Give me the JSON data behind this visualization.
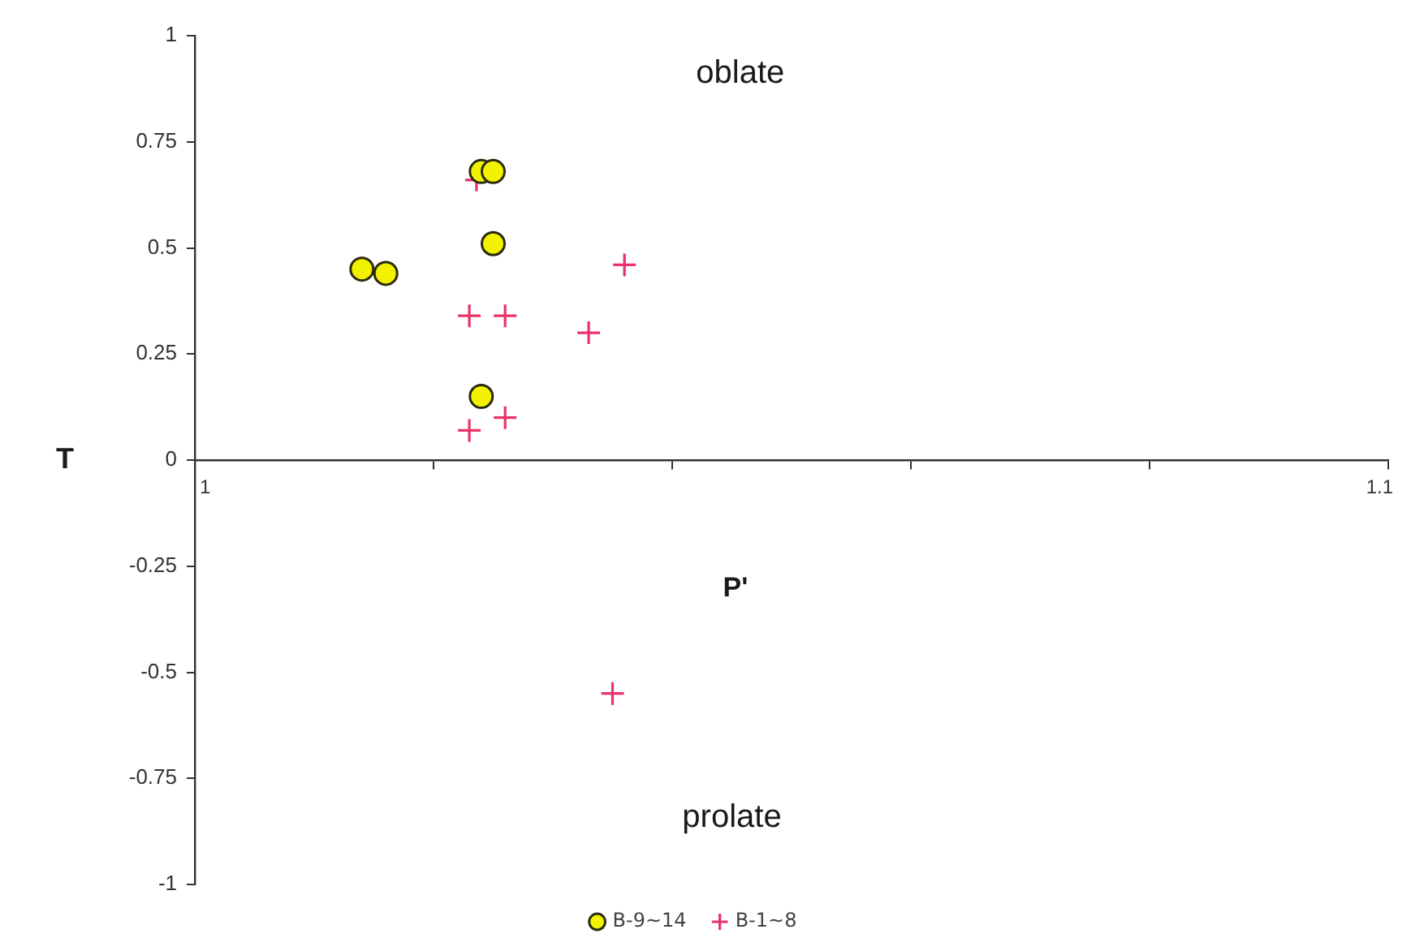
{
  "chart_data": {
    "type": "scatter",
    "xlabel": "P'",
    "ylabel": "T",
    "annotations": [
      "oblate",
      "prolate"
    ],
    "series": [
      {
        "name": "B-9~14",
        "color": "#f2f200",
        "marker": "circle",
        "x": [
          1.024,
          1.025,
          1.025,
          1.014,
          1.016,
          1.024
        ],
        "values": [
          0.68,
          0.68,
          0.51,
          0.45,
          0.44,
          0.15
        ]
      },
      {
        "name": "B-1~8",
        "color": "#e8336a",
        "marker": "cross",
        "x": [
          1.0236,
          1.023,
          1.026,
          1.036,
          1.033,
          1.026,
          1.023,
          1.035
        ],
        "values": [
          0.66,
          0.34,
          0.34,
          0.46,
          0.3,
          0.1,
          0.07,
          -0.55
        ]
      }
    ],
    "xlim": [
      1,
      1.1
    ],
    "ylim": [
      -1,
      1
    ],
    "xticks": [
      1,
      {
        "value": 1.02,
        "label": null
      },
      {
        "value": 1.04,
        "label": null
      },
      {
        "value": 1.06,
        "label": null
      },
      {
        "value": 1.08,
        "label": null
      },
      1.1
    ],
    "yticks": [
      -1,
      -0.75,
      -0.5,
      -0.25,
      0,
      0.25,
      0.5,
      0.75,
      1
    ],
    "legend": "bottom",
    "grid": false
  }
}
